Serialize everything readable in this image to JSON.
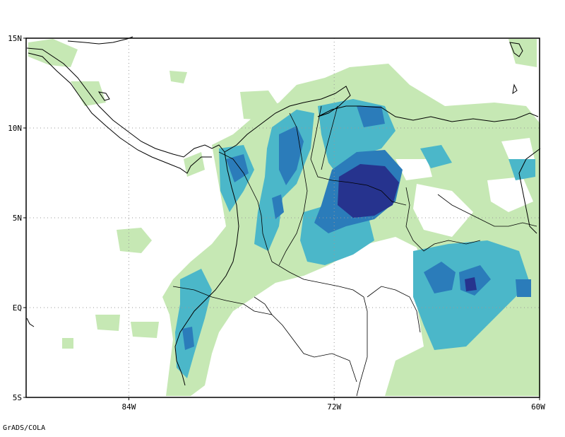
{
  "map": {
    "extent": {
      "lon_min": -90,
      "lon_max": -60,
      "lat_min": -5,
      "lat_max": 15
    },
    "lat_ticks": [
      {
        "value": 15,
        "label": "15N"
      },
      {
        "value": 10,
        "label": "10N"
      },
      {
        "value": 5,
        "label": "5N"
      },
      {
        "value": 0,
        "label": "EQ"
      },
      {
        "value": -5,
        "label": "5S"
      }
    ],
    "lon_ticks": [
      {
        "value": -84,
        "label": "84W"
      },
      {
        "value": -72,
        "label": "72W"
      },
      {
        "value": -60,
        "label": "60W"
      }
    ],
    "grid": "dotted",
    "shading_colors": [
      "#c6e8b4",
      "#4bb7c9",
      "#2b7cba",
      "#26338e"
    ],
    "frame_color": "#000000"
  },
  "credit": "GrADS/COLA"
}
